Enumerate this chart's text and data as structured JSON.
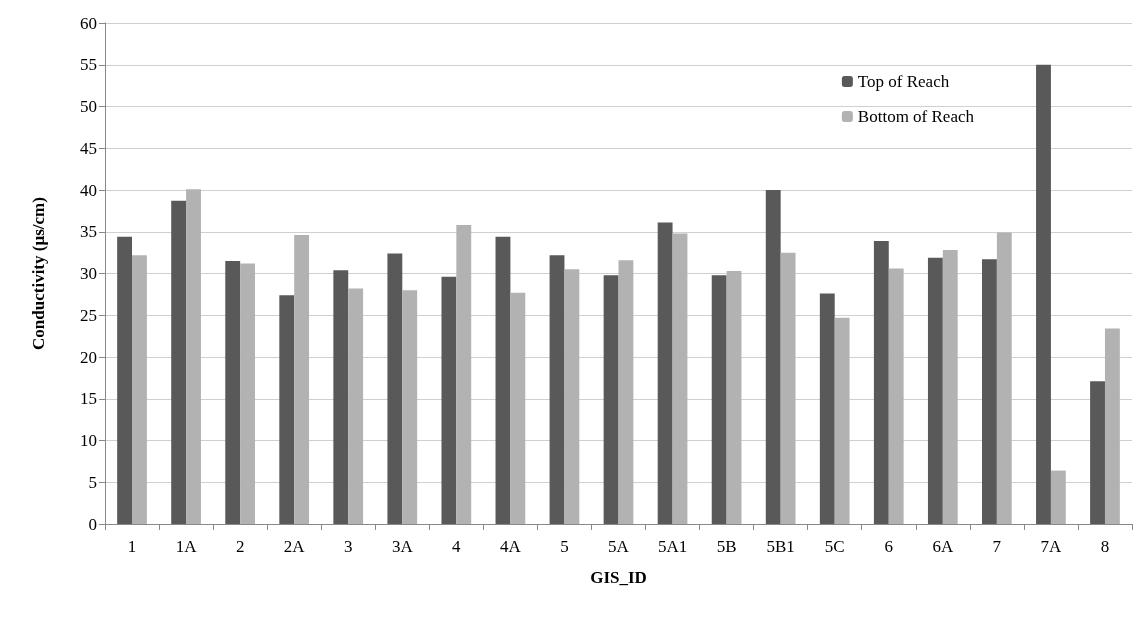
{
  "chart_data": {
    "type": "bar",
    "xlabel": "GIS_ID",
    "ylabel": "Conductivity (µs/cm)",
    "categories": [
      "1",
      "1A",
      "2",
      "2A",
      "3",
      "3A",
      "4",
      "4A",
      "5",
      "5A",
      "5A1",
      "5B",
      "5B1",
      "5C",
      "6",
      "6A",
      "7",
      "7A",
      "8"
    ],
    "series": [
      {
        "name": "Top of Reach",
        "color": "#595959",
        "values": [
          34.4,
          38.7,
          31.5,
          27.4,
          30.4,
          32.4,
          29.6,
          34.4,
          32.2,
          29.8,
          36.1,
          29.8,
          40.0,
          27.6,
          33.9,
          31.9,
          31.7,
          55.0,
          17.1
        ]
      },
      {
        "name": "Bottom of Reach",
        "color": "#b2b2b2",
        "values": [
          32.2,
          40.1,
          31.2,
          34.6,
          28.2,
          28.0,
          35.8,
          27.7,
          30.5,
          31.6,
          34.8,
          30.3,
          32.5,
          24.7,
          30.6,
          32.8,
          34.9,
          6.4,
          23.4
        ]
      }
    ],
    "ylim": [
      0,
      60
    ],
    "yticks": [
      0,
      5,
      10,
      15,
      20,
      25,
      30,
      35,
      40,
      45,
      50,
      55,
      60
    ],
    "grid": "y",
    "legend": "top right"
  }
}
